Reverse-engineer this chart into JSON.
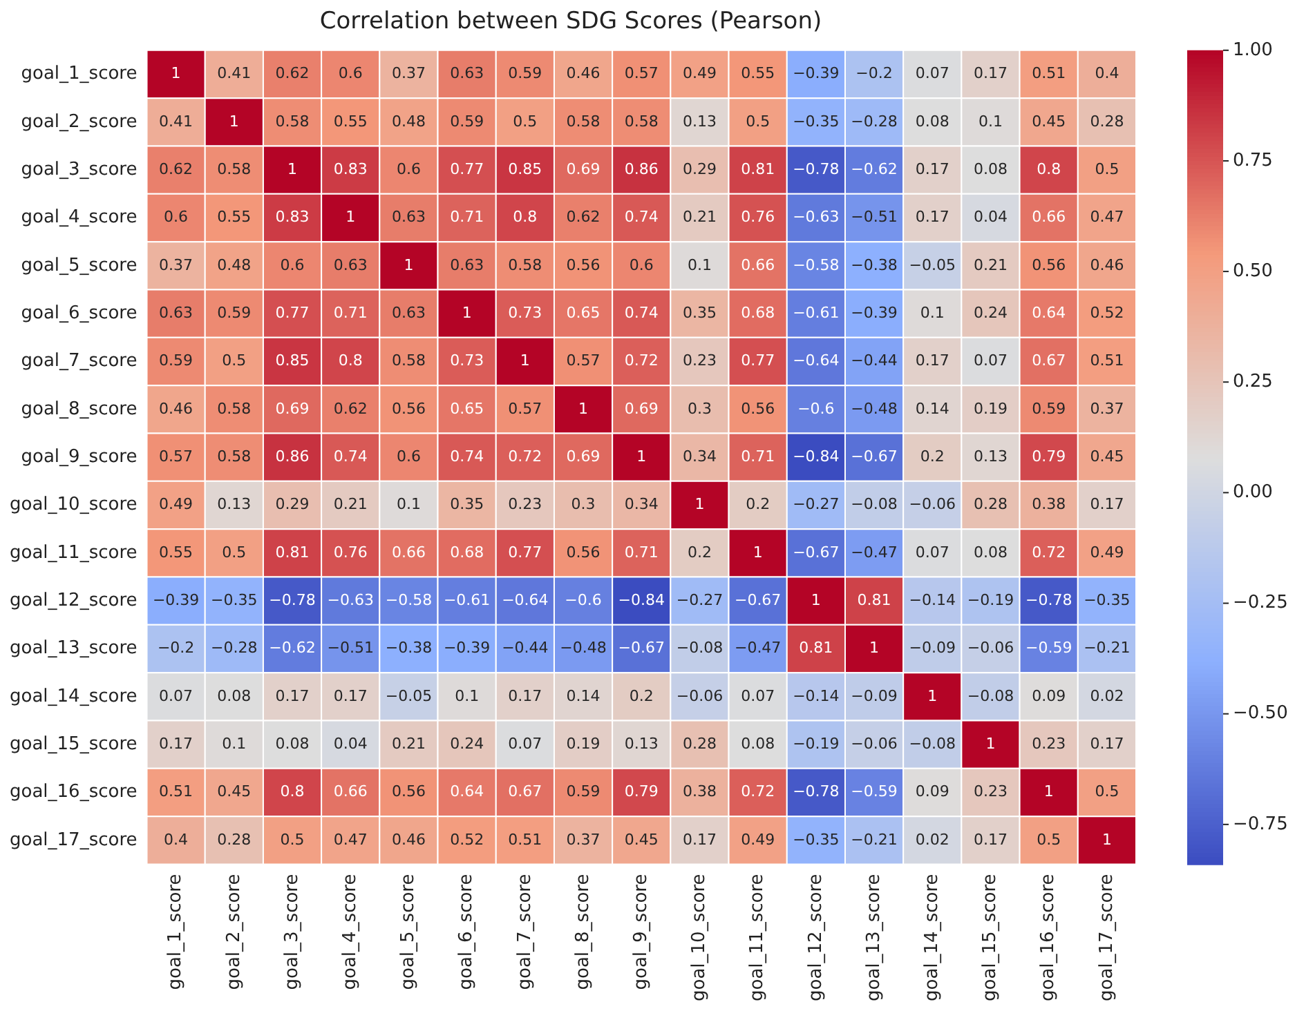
{
  "chart_data": {
    "type": "heatmap",
    "title": "Correlation between SDG Scores (Pearson)",
    "categories": [
      "goal_1_score",
      "goal_2_score",
      "goal_3_score",
      "goal_4_score",
      "goal_5_score",
      "goal_6_score",
      "goal_7_score",
      "goal_8_score",
      "goal_9_score",
      "goal_10_score",
      "goal_11_score",
      "goal_12_score",
      "goal_13_score",
      "goal_14_score",
      "goal_15_score",
      "goal_16_score",
      "goal_17_score"
    ],
    "y_categories": [
      "goal_1_score",
      "goal_2_score",
      "goal_3_score",
      "goal_4_score",
      "goal_5_score",
      "goal_6_score",
      "goal_7_score",
      "goal_8_score",
      "goal_9_score",
      "goal_10_score",
      "goal_11_score",
      "goal_12_score",
      "goal_13_score",
      "goal_14_score",
      "goal_15_score",
      "goal_16_score",
      "goal_17_score"
    ],
    "cells": [
      [
        1,
        0.41,
        0.62,
        0.6,
        0.37,
        0.63,
        0.59,
        0.46,
        0.57,
        0.49,
        0.55,
        -0.39,
        -0.2,
        0.07,
        0.17,
        0.51,
        0.4
      ],
      [
        0.41,
        1,
        0.58,
        0.55,
        0.48,
        0.59,
        0.5,
        0.58,
        0.58,
        0.13,
        0.5,
        -0.35,
        -0.28,
        0.08,
        0.1,
        0.45,
        0.28
      ],
      [
        0.62,
        0.58,
        1,
        0.83,
        0.6,
        0.77,
        0.85,
        0.69,
        0.86,
        0.29,
        0.81,
        -0.78,
        -0.62,
        0.17,
        0.08,
        0.8,
        0.5
      ],
      [
        0.6,
        0.55,
        0.83,
        1,
        0.63,
        0.71,
        0.8,
        0.62,
        0.74,
        0.21,
        0.76,
        -0.63,
        -0.51,
        0.17,
        0.04,
        0.66,
        0.47
      ],
      [
        0.37,
        0.48,
        0.6,
        0.63,
        1,
        0.63,
        0.58,
        0.56,
        0.6,
        0.1,
        0.66,
        -0.58,
        -0.38,
        -0.05,
        0.21,
        0.56,
        0.46
      ],
      [
        0.63,
        0.59,
        0.77,
        0.71,
        0.63,
        1,
        0.73,
        0.65,
        0.74,
        0.35,
        0.68,
        -0.61,
        -0.39,
        0.1,
        0.24,
        0.64,
        0.52
      ],
      [
        0.59,
        0.5,
        0.85,
        0.8,
        0.58,
        0.73,
        1,
        0.57,
        0.72,
        0.23,
        0.77,
        -0.64,
        -0.44,
        0.17,
        0.07,
        0.67,
        0.51
      ],
      [
        0.46,
        0.58,
        0.69,
        0.62,
        0.56,
        0.65,
        0.57,
        1,
        0.69,
        0.3,
        0.56,
        -0.6,
        -0.48,
        0.14,
        0.19,
        0.59,
        0.37
      ],
      [
        0.57,
        0.58,
        0.86,
        0.74,
        0.6,
        0.74,
        0.72,
        0.69,
        1,
        0.34,
        0.71,
        -0.84,
        -0.67,
        0.2,
        0.13,
        0.79,
        0.45
      ],
      [
        0.49,
        0.13,
        0.29,
        0.21,
        0.1,
        0.35,
        0.23,
        0.3,
        0.34,
        1,
        0.2,
        -0.27,
        -0.08,
        -0.06,
        0.28,
        0.38,
        0.17
      ],
      [
        0.55,
        0.5,
        0.81,
        0.76,
        0.66,
        0.68,
        0.77,
        0.56,
        0.71,
        0.2,
        1,
        -0.67,
        -0.47,
        0.07,
        0.08,
        0.72,
        0.49
      ],
      [
        -0.39,
        -0.35,
        -0.78,
        -0.63,
        -0.58,
        -0.61,
        -0.64,
        -0.6,
        -0.84,
        -0.27,
        -0.67,
        1,
        0.81,
        -0.14,
        -0.19,
        -0.78,
        -0.35
      ],
      [
        -0.2,
        -0.28,
        -0.62,
        -0.51,
        -0.38,
        -0.39,
        -0.44,
        -0.48,
        -0.67,
        -0.08,
        -0.47,
        0.81,
        1,
        -0.09,
        -0.06,
        -0.59,
        -0.21
      ],
      [
        0.07,
        0.08,
        0.17,
        0.17,
        -0.05,
        0.1,
        0.17,
        0.14,
        0.2,
        -0.06,
        0.07,
        -0.14,
        -0.09,
        1,
        -0.08,
        0.09,
        0.02
      ],
      [
        0.17,
        0.1,
        0.08,
        0.04,
        0.21,
        0.24,
        0.07,
        0.19,
        0.13,
        0.28,
        0.08,
        -0.19,
        -0.06,
        -0.08,
        1,
        0.23,
        0.17
      ],
      [
        0.51,
        0.45,
        0.8,
        0.66,
        0.56,
        0.64,
        0.67,
        0.59,
        0.79,
        0.38,
        0.72,
        -0.78,
        -0.59,
        0.09,
        0.23,
        1,
        0.5
      ],
      [
        0.4,
        0.28,
        0.5,
        0.47,
        0.46,
        0.52,
        0.51,
        0.37,
        0.45,
        0.17,
        0.49,
        -0.35,
        -0.21,
        0.02,
        0.17,
        0.5,
        1
      ]
    ],
    "clim": [
      -0.84,
      1
    ],
    "cticks": [
      {
        "value": -0.75,
        "label": "−0.75"
      },
      {
        "value": -0.5,
        "label": "−0.50"
      },
      {
        "value": -0.25,
        "label": "−0.25"
      },
      {
        "value": 0,
        "label": "0.00"
      },
      {
        "value": 0.25,
        "label": "0.25"
      },
      {
        "value": 0.5,
        "label": "0.50"
      },
      {
        "value": 0.75,
        "label": "0.75"
      },
      {
        "value": 1,
        "label": "1.00"
      }
    ],
    "data_labels": true
  }
}
